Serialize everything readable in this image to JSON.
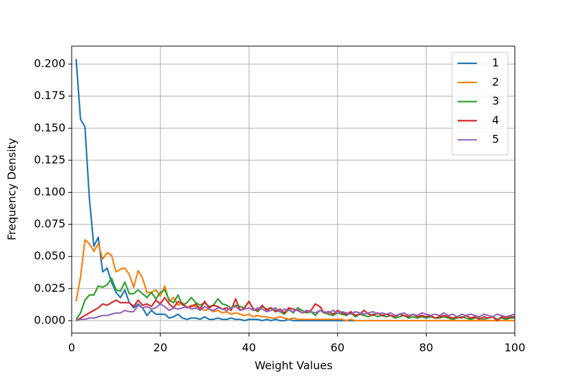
{
  "chart_data": {
    "type": "line",
    "xlabel": "Weight Values",
    "ylabel": "Frequency Density",
    "x": [
      1,
      2,
      3,
      4,
      5,
      6,
      7,
      8,
      9,
      10,
      11,
      12,
      13,
      14,
      15,
      16,
      17,
      18,
      19,
      20,
      21,
      22,
      23,
      24,
      25,
      26,
      27,
      28,
      29,
      30,
      31,
      32,
      33,
      34,
      35,
      36,
      37,
      38,
      39,
      40,
      41,
      42,
      43,
      44,
      45,
      46,
      47,
      48,
      49,
      50,
      51,
      52,
      53,
      54,
      55,
      56,
      57,
      58,
      59,
      60,
      61,
      62,
      63,
      64,
      65,
      66,
      67,
      68,
      69,
      70,
      71,
      72,
      73,
      74,
      75,
      76,
      77,
      78,
      79,
      80,
      81,
      82,
      83,
      84,
      85,
      86,
      87,
      88,
      89,
      90,
      91,
      92,
      93,
      94,
      95,
      96,
      97,
      98,
      99,
      100
    ],
    "series": [
      {
        "name": "1",
        "color": "#1f77b4",
        "values": [
          0.204,
          0.157,
          0.151,
          0.095,
          0.058,
          0.065,
          0.038,
          0.041,
          0.03,
          0.022,
          0.018,
          0.024,
          0.014,
          0.01,
          0.013,
          0.01,
          0.004,
          0.008,
          0.005,
          0.005,
          0.005,
          0.002,
          0.003,
          0.005,
          0.002,
          0.001,
          0.002,
          0.002,
          0.001,
          0.003,
          0.001,
          0.001,
          0.002,
          0.001,
          0.001,
          0.002,
          0.001,
          0.001,
          0,
          0.001,
          0.001,
          0.001,
          0,
          0.001,
          0,
          0.001,
          0,
          0,
          0.001,
          0,
          0,
          0,
          0,
          0,
          0,
          0,
          0,
          0,
          0,
          0,
          0,
          0,
          0,
          0,
          0,
          0,
          0,
          0,
          0,
          0,
          0,
          0,
          0,
          0,
          0,
          0,
          0,
          0,
          0,
          0,
          0,
          0,
          0,
          0,
          0,
          0,
          0,
          0,
          0,
          0,
          0,
          0,
          0,
          0,
          0,
          0,
          0,
          0,
          0,
          0
        ]
      },
      {
        "name": "2",
        "color": "#ff7f0e",
        "values": [
          0.015,
          0.034,
          0.063,
          0.06,
          0.054,
          0.06,
          0.048,
          0.053,
          0.051,
          0.038,
          0.04,
          0.041,
          0.036,
          0.026,
          0.039,
          0.033,
          0.022,
          0.022,
          0.024,
          0.019,
          0.027,
          0.015,
          0.018,
          0.012,
          0.014,
          0.01,
          0.012,
          0.011,
          0.01,
          0.008,
          0.009,
          0.007,
          0.008,
          0.006,
          0.007,
          0.005,
          0.006,
          0.005,
          0.004,
          0.005,
          0.003,
          0.004,
          0.003,
          0.003,
          0.002,
          0.002,
          0.003,
          0.002,
          0.001,
          0.002,
          0.001,
          0.001,
          0.001,
          0.001,
          0.001,
          0.001,
          0.001,
          0.001,
          0.001,
          0.001,
          0.001,
          0,
          0.001,
          0,
          0,
          0,
          0,
          0,
          0,
          0,
          0,
          0,
          0,
          0,
          0,
          0,
          0,
          0,
          0,
          0,
          0,
          0,
          0,
          0,
          0,
          0,
          0,
          0,
          0,
          0,
          0,
          0,
          0,
          0,
          0,
          0,
          0,
          0,
          0,
          0
        ]
      },
      {
        "name": "3",
        "color": "#2ca02c",
        "values": [
          0.001,
          0.006,
          0.016,
          0.02,
          0.02,
          0.027,
          0.026,
          0.028,
          0.033,
          0.024,
          0.023,
          0.03,
          0.021,
          0.021,
          0.024,
          0.021,
          0.018,
          0.022,
          0.017,
          0.022,
          0.024,
          0.016,
          0.014,
          0.02,
          0.012,
          0.014,
          0.018,
          0.014,
          0.012,
          0.014,
          0.011,
          0.012,
          0.017,
          0.013,
          0.012,
          0.01,
          0.012,
          0.011,
          0.01,
          0.015,
          0.009,
          0.007,
          0.011,
          0.009,
          0.01,
          0.008,
          0.007,
          0.005,
          0.009,
          0.006,
          0.01,
          0.008,
          0.006,
          0.007,
          0.004,
          0.008,
          0.006,
          0.005,
          0.004,
          0.006,
          0.005,
          0.004,
          0.006,
          0.003,
          0.005,
          0.004,
          0.003,
          0.005,
          0.003,
          0.004,
          0.003,
          0.004,
          0.002,
          0.003,
          0.004,
          0.002,
          0.003,
          0.002,
          0.003,
          0.002,
          0.003,
          0.002,
          0.002,
          0.003,
          0.002,
          0.001,
          0.002,
          0.003,
          0.002,
          0.001,
          0.002,
          0.002,
          0.001,
          0.002,
          0.003,
          0.001,
          0.002,
          0.001,
          0.002,
          0.002
        ]
      },
      {
        "name": "4",
        "color": "#d62728",
        "values": [
          0,
          0.002,
          0.004,
          0.006,
          0.008,
          0.01,
          0.013,
          0.012,
          0.014,
          0.016,
          0.014,
          0.014,
          0.014,
          0.011,
          0.016,
          0.012,
          0.013,
          0.011,
          0.016,
          0.013,
          0.018,
          0.013,
          0.01,
          0.015,
          0.013,
          0.01,
          0.011,
          0.013,
          0.009,
          0.015,
          0.01,
          0.012,
          0.011,
          0.009,
          0.01,
          0.008,
          0.017,
          0.008,
          0.01,
          0.015,
          0.009,
          0.008,
          0.012,
          0.008,
          0.01,
          0.007,
          0.009,
          0.006,
          0.01,
          0.009,
          0.008,
          0.006,
          0.007,
          0.008,
          0.013,
          0.011,
          0.006,
          0.007,
          0.005,
          0.008,
          0.006,
          0.005,
          0.007,
          0.004,
          0.005,
          0.008,
          0.005,
          0.004,
          0.006,
          0.004,
          0.005,
          0.004,
          0.003,
          0.005,
          0.004,
          0.003,
          0.005,
          0.003,
          0.004,
          0.003,
          0.004,
          0.002,
          0.003,
          0.004,
          0.003,
          0.002,
          0.003,
          0.002,
          0.004,
          0.002,
          0.003,
          0.001,
          0.003,
          0.002,
          0.003,
          0,
          0.003,
          0.002,
          0.003,
          0.003
        ]
      },
      {
        "name": "5",
        "color": "#9467bd",
        "values": [
          0,
          0.001,
          0.001,
          0.002,
          0.002,
          0.003,
          0.004,
          0.004,
          0.005,
          0.006,
          0.006,
          0.008,
          0.007,
          0.007,
          0.012,
          0.01,
          0.011,
          0.009,
          0.01,
          0.013,
          0.011,
          0.008,
          0.01,
          0.009,
          0.01,
          0.011,
          0.009,
          0.01,
          0.008,
          0.011,
          0.009,
          0.008,
          0.01,
          0.009,
          0.008,
          0.01,
          0.011,
          0.008,
          0.009,
          0.01,
          0.008,
          0.01,
          0.009,
          0.007,
          0.008,
          0.01,
          0.007,
          0.009,
          0.008,
          0.007,
          0.009,
          0.006,
          0.008,
          0.007,
          0.006,
          0.008,
          0.007,
          0.006,
          0.008,
          0.006,
          0.007,
          0.006,
          0.005,
          0.007,
          0.006,
          0.005,
          0.006,
          0.007,
          0.005,
          0.006,
          0.005,
          0.006,
          0.004,
          0.005,
          0.006,
          0.004,
          0.005,
          0.004,
          0.006,
          0.005,
          0.004,
          0.005,
          0.004,
          0.006,
          0.004,
          0.005,
          0.003,
          0.005,
          0.004,
          0.005,
          0.004,
          0.003,
          0.005,
          0.004,
          0.003,
          0.005,
          0.004,
          0.003,
          0.004,
          0.005
        ]
      }
    ],
    "xlim": [
      0,
      100
    ],
    "xticks": [
      0,
      20,
      40,
      60,
      80,
      100
    ],
    "ylim": [
      -0.0097,
      0.214
    ],
    "yticks": [
      {
        "value": 0,
        "label": "0.000"
      },
      {
        "value": 0.025,
        "label": "0.025"
      },
      {
        "value": 0.05,
        "label": "0.050"
      },
      {
        "value": 0.075,
        "label": "0.075"
      },
      {
        "value": 0.1,
        "label": "0.100"
      },
      {
        "value": 0.125,
        "label": "0.125"
      },
      {
        "value": 0.15,
        "label": "0.150"
      },
      {
        "value": 0.175,
        "label": "0.175"
      },
      {
        "value": 0.2,
        "label": "0.200"
      }
    ],
    "grid": true,
    "legend": "upper-right"
  }
}
